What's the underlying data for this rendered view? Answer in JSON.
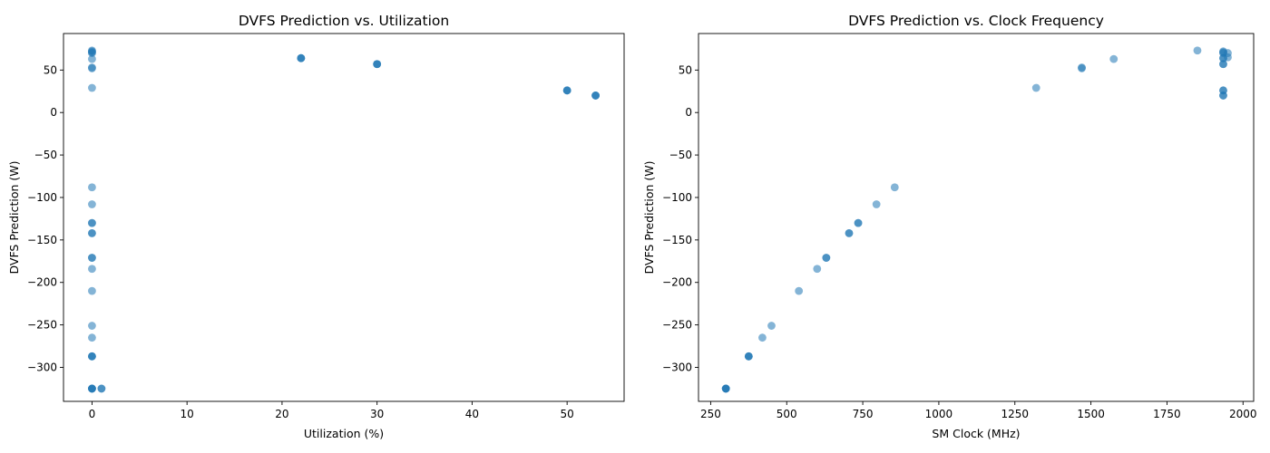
{
  "chart_data": [
    {
      "type": "scatter",
      "title": "DVFS Prediction vs. Utilization",
      "xlabel": "Utilization (%)",
      "ylabel": "DVFS Prediction (W)",
      "xlim": [
        -3,
        56
      ],
      "ylim": [
        -340,
        93
      ],
      "xticks": [
        0,
        10,
        20,
        30,
        40,
        50
      ],
      "xtick_labels": [
        "0",
        "10",
        "20",
        "30",
        "40",
        "50"
      ],
      "yticks": [
        -300,
        -250,
        -200,
        -150,
        -100,
        -50,
        0,
        50
      ],
      "ytick_labels": [
        "−300",
        "−250",
        "−200",
        "−150",
        "−100",
        "−50",
        "0",
        "50"
      ],
      "grid": false,
      "color": "#1f77b4",
      "opacity": 0.55,
      "points": [
        {
          "x": 0,
          "y": 73
        },
        {
          "x": 0,
          "y": 72
        },
        {
          "x": 0,
          "y": 71
        },
        {
          "x": 0,
          "y": 70
        },
        {
          "x": 0,
          "y": 63
        },
        {
          "x": 0,
          "y": 53
        },
        {
          "x": 0,
          "y": 52
        },
        {
          "x": 0,
          "y": 29
        },
        {
          "x": 0,
          "y": -88
        },
        {
          "x": 0,
          "y": -108
        },
        {
          "x": 0,
          "y": -130
        },
        {
          "x": 0,
          "y": -130
        },
        {
          "x": 0,
          "y": -142
        },
        {
          "x": 0,
          "y": -142
        },
        {
          "x": 0,
          "y": -171
        },
        {
          "x": 0,
          "y": -171
        },
        {
          "x": 0,
          "y": -184
        },
        {
          "x": 0,
          "y": -210
        },
        {
          "x": 0,
          "y": -251
        },
        {
          "x": 0,
          "y": -265
        },
        {
          "x": 0,
          "y": -287
        },
        {
          "x": 0,
          "y": -287
        },
        {
          "x": 0,
          "y": -287
        },
        {
          "x": 0,
          "y": -325
        },
        {
          "x": 0,
          "y": -325
        },
        {
          "x": 0,
          "y": -325
        },
        {
          "x": 0,
          "y": -325
        },
        {
          "x": 1,
          "y": -325
        },
        {
          "x": 1,
          "y": -325
        },
        {
          "x": 22,
          "y": 64
        },
        {
          "x": 22,
          "y": 64
        },
        {
          "x": 22,
          "y": 64
        },
        {
          "x": 30,
          "y": 57
        },
        {
          "x": 30,
          "y": 57
        },
        {
          "x": 30,
          "y": 57
        },
        {
          "x": 50,
          "y": 26
        },
        {
          "x": 50,
          "y": 26
        },
        {
          "x": 50,
          "y": 26
        },
        {
          "x": 53,
          "y": 20
        },
        {
          "x": 53,
          "y": 20
        },
        {
          "x": 53,
          "y": 20
        }
      ]
    },
    {
      "type": "scatter",
      "title": "DVFS Prediction vs. Clock Frequency",
      "xlabel": "SM Clock (MHz)",
      "ylabel": "DVFS Prediction (W)",
      "xlim": [
        210,
        2035
      ],
      "ylim": [
        -340,
        93
      ],
      "xticks": [
        250,
        500,
        750,
        1000,
        1250,
        1500,
        1750,
        2000
      ],
      "xtick_labels": [
        "250",
        "500",
        "750",
        "1000",
        "1250",
        "1500",
        "1750",
        "2000"
      ],
      "yticks": [
        -300,
        -250,
        -200,
        -150,
        -100,
        -50,
        0,
        50
      ],
      "ytick_labels": [
        "−300",
        "−250",
        "−200",
        "−150",
        "−100",
        "−50",
        "0",
        "50"
      ],
      "grid": false,
      "color": "#1f77b4",
      "opacity": 0.55,
      "points": [
        {
          "x": 300,
          "y": -325
        },
        {
          "x": 300,
          "y": -325
        },
        {
          "x": 300,
          "y": -325
        },
        {
          "x": 300,
          "y": -325
        },
        {
          "x": 375,
          "y": -287
        },
        {
          "x": 375,
          "y": -287
        },
        {
          "x": 375,
          "y": -287
        },
        {
          "x": 420,
          "y": -265
        },
        {
          "x": 450,
          "y": -251
        },
        {
          "x": 540,
          "y": -210
        },
        {
          "x": 600,
          "y": -184
        },
        {
          "x": 630,
          "y": -171
        },
        {
          "x": 630,
          "y": -171
        },
        {
          "x": 705,
          "y": -142
        },
        {
          "x": 705,
          "y": -142
        },
        {
          "x": 735,
          "y": -130
        },
        {
          "x": 735,
          "y": -130
        },
        {
          "x": 795,
          "y": -108
        },
        {
          "x": 855,
          "y": -88
        },
        {
          "x": 1320,
          "y": 29
        },
        {
          "x": 1470,
          "y": 53
        },
        {
          "x": 1470,
          "y": 52
        },
        {
          "x": 1575,
          "y": 63
        },
        {
          "x": 1850,
          "y": 73
        },
        {
          "x": 1935,
          "y": 72
        },
        {
          "x": 1935,
          "y": 71
        },
        {
          "x": 1935,
          "y": 70
        },
        {
          "x": 1935,
          "y": 64
        },
        {
          "x": 1935,
          "y": 64
        },
        {
          "x": 1935,
          "y": 57
        },
        {
          "x": 1935,
          "y": 57
        },
        {
          "x": 1935,
          "y": 26
        },
        {
          "x": 1935,
          "y": 26
        },
        {
          "x": 1935,
          "y": 20
        },
        {
          "x": 1935,
          "y": 20
        },
        {
          "x": 1950,
          "y": 70
        },
        {
          "x": 1950,
          "y": 65
        }
      ]
    }
  ]
}
